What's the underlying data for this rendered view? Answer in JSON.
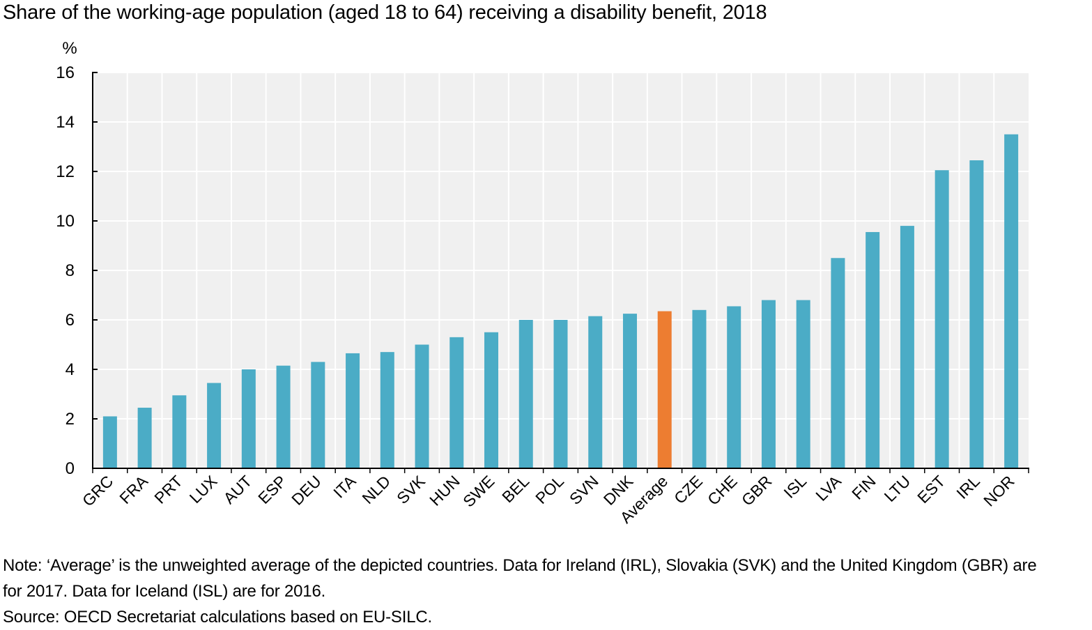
{
  "chart_data": {
    "type": "bar",
    "title": "Share of the working-age population (aged 18 to 64) receiving a disability benefit, 2018",
    "ylabel": "%",
    "ylim": [
      0,
      16
    ],
    "yticks": [
      0,
      2,
      4,
      6,
      8,
      10,
      12,
      14,
      16
    ],
    "grid": true,
    "categories": [
      "GRC",
      "FRA",
      "PRT",
      "LUX",
      "AUT",
      "ESP",
      "DEU",
      "ITA",
      "NLD",
      "SVK",
      "HUN",
      "SWE",
      "BEL",
      "POL",
      "SVN",
      "DNK",
      "Average",
      "CZE",
      "CHE",
      "GBR",
      "ISL",
      "LVA",
      "FIN",
      "LTU",
      "EST",
      "IRL",
      "NOR"
    ],
    "values": [
      2.1,
      2.45,
      2.95,
      3.45,
      4.0,
      4.15,
      4.3,
      4.65,
      4.7,
      5.0,
      5.3,
      5.5,
      6.0,
      6.0,
      6.15,
      6.25,
      6.35,
      6.4,
      6.55,
      6.8,
      6.8,
      8.5,
      9.55,
      9.8,
      12.05,
      12.45,
      13.5
    ],
    "highlight": "Average",
    "bar_color": "#4bacc6",
    "highlight_color": "#ed7d31",
    "plot_background": "#f0f0f0"
  },
  "notes": {
    "line1": "Note: ‘Average’ is the unweighted average of the depicted countries. Data for Ireland (IRL), Slovakia (SVK) and the United Kingdom (GBR) are",
    "line2": "for 2017. Data for Iceland (ISL) are for 2016.",
    "source": "Source: OECD Secretariat calculations based on EU-SILC."
  }
}
